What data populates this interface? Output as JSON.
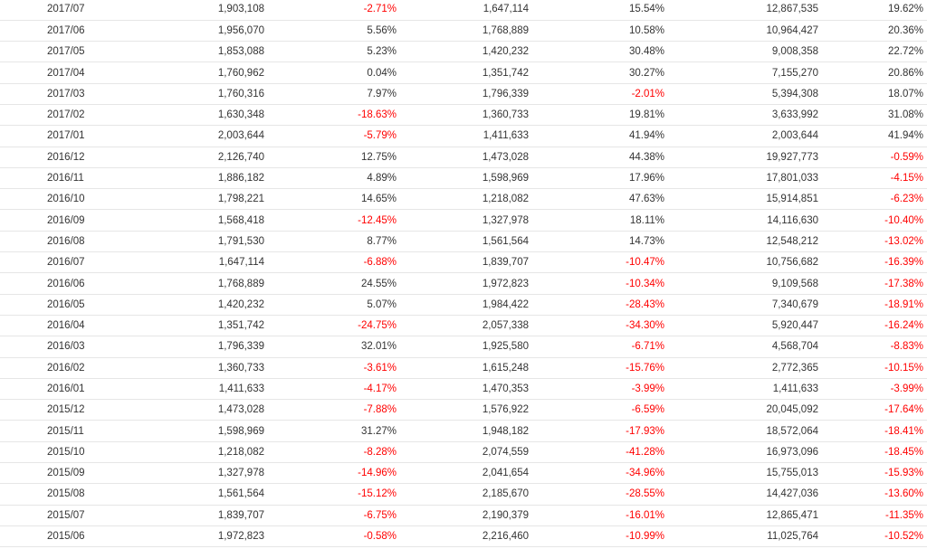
{
  "colors": {
    "negative": "#ff0000",
    "text": "#333333",
    "row_border": "#e6e6e6"
  },
  "rows": [
    {
      "period": "2017/07",
      "v1": "1,903,108",
      "p1": "-2.71%",
      "v2": "1,647,114",
      "p2": "15.54%",
      "v3": "12,867,535",
      "p3": "19.62%"
    },
    {
      "period": "2017/06",
      "v1": "1,956,070",
      "p1": "5.56%",
      "v2": "1,768,889",
      "p2": "10.58%",
      "v3": "10,964,427",
      "p3": "20.36%"
    },
    {
      "period": "2017/05",
      "v1": "1,853,088",
      "p1": "5.23%",
      "v2": "1,420,232",
      "p2": "30.48%",
      "v3": "9,008,358",
      "p3": "22.72%"
    },
    {
      "period": "2017/04",
      "v1": "1,760,962",
      "p1": "0.04%",
      "v2": "1,351,742",
      "p2": "30.27%",
      "v3": "7,155,270",
      "p3": "20.86%"
    },
    {
      "period": "2017/03",
      "v1": "1,760,316",
      "p1": "7.97%",
      "v2": "1,796,339",
      "p2": "-2.01%",
      "v3": "5,394,308",
      "p3": "18.07%"
    },
    {
      "period": "2017/02",
      "v1": "1,630,348",
      "p1": "-18.63%",
      "v2": "1,360,733",
      "p2": "19.81%",
      "v3": "3,633,992",
      "p3": "31.08%"
    },
    {
      "period": "2017/01",
      "v1": "2,003,644",
      "p1": "-5.79%",
      "v2": "1,411,633",
      "p2": "41.94%",
      "v3": "2,003,644",
      "p3": "41.94%"
    },
    {
      "period": "2016/12",
      "v1": "2,126,740",
      "p1": "12.75%",
      "v2": "1,473,028",
      "p2": "44.38%",
      "v3": "19,927,773",
      "p3": "-0.59%"
    },
    {
      "period": "2016/11",
      "v1": "1,886,182",
      "p1": "4.89%",
      "v2": "1,598,969",
      "p2": "17.96%",
      "v3": "17,801,033",
      "p3": "-4.15%"
    },
    {
      "period": "2016/10",
      "v1": "1,798,221",
      "p1": "14.65%",
      "v2": "1,218,082",
      "p2": "47.63%",
      "v3": "15,914,851",
      "p3": "-6.23%"
    },
    {
      "period": "2016/09",
      "v1": "1,568,418",
      "p1": "-12.45%",
      "v2": "1,327,978",
      "p2": "18.11%",
      "v3": "14,116,630",
      "p3": "-10.40%"
    },
    {
      "period": "2016/08",
      "v1": "1,791,530",
      "p1": "8.77%",
      "v2": "1,561,564",
      "p2": "14.73%",
      "v3": "12,548,212",
      "p3": "-13.02%"
    },
    {
      "period": "2016/07",
      "v1": "1,647,114",
      "p1": "-6.88%",
      "v2": "1,839,707",
      "p2": "-10.47%",
      "v3": "10,756,682",
      "p3": "-16.39%"
    },
    {
      "period": "2016/06",
      "v1": "1,768,889",
      "p1": "24.55%",
      "v2": "1,972,823",
      "p2": "-10.34%",
      "v3": "9,109,568",
      "p3": "-17.38%"
    },
    {
      "period": "2016/05",
      "v1": "1,420,232",
      "p1": "5.07%",
      "v2": "1,984,422",
      "p2": "-28.43%",
      "v3": "7,340,679",
      "p3": "-18.91%"
    },
    {
      "period": "2016/04",
      "v1": "1,351,742",
      "p1": "-24.75%",
      "v2": "2,057,338",
      "p2": "-34.30%",
      "v3": "5,920,447",
      "p3": "-16.24%"
    },
    {
      "period": "2016/03",
      "v1": "1,796,339",
      "p1": "32.01%",
      "v2": "1,925,580",
      "p2": "-6.71%",
      "v3": "4,568,704",
      "p3": "-8.83%"
    },
    {
      "period": "2016/02",
      "v1": "1,360,733",
      "p1": "-3.61%",
      "v2": "1,615,248",
      "p2": "-15.76%",
      "v3": "2,772,365",
      "p3": "-10.15%"
    },
    {
      "period": "2016/01",
      "v1": "1,411,633",
      "p1": "-4.17%",
      "v2": "1,470,353",
      "p2": "-3.99%",
      "v3": "1,411,633",
      "p3": "-3.99%"
    },
    {
      "period": "2015/12",
      "v1": "1,473,028",
      "p1": "-7.88%",
      "v2": "1,576,922",
      "p2": "-6.59%",
      "v3": "20,045,092",
      "p3": "-17.64%"
    },
    {
      "period": "2015/11",
      "v1": "1,598,969",
      "p1": "31.27%",
      "v2": "1,948,182",
      "p2": "-17.93%",
      "v3": "18,572,064",
      "p3": "-18.41%"
    },
    {
      "period": "2015/10",
      "v1": "1,218,082",
      "p1": "-8.28%",
      "v2": "2,074,559",
      "p2": "-41.28%",
      "v3": "16,973,096",
      "p3": "-18.45%"
    },
    {
      "period": "2015/09",
      "v1": "1,327,978",
      "p1": "-14.96%",
      "v2": "2,041,654",
      "p2": "-34.96%",
      "v3": "15,755,013",
      "p3": "-15.93%"
    },
    {
      "period": "2015/08",
      "v1": "1,561,564",
      "p1": "-15.12%",
      "v2": "2,185,670",
      "p2": "-28.55%",
      "v3": "14,427,036",
      "p3": "-13.60%"
    },
    {
      "period": "2015/07",
      "v1": "1,839,707",
      "p1": "-6.75%",
      "v2": "2,190,379",
      "p2": "-16.01%",
      "v3": "12,865,471",
      "p3": "-11.35%"
    },
    {
      "period": "2015/06",
      "v1": "1,972,823",
      "p1": "-0.58%",
      "v2": "2,216,460",
      "p2": "-10.99%",
      "v3": "11,025,764",
      "p3": "-10.52%"
    }
  ]
}
